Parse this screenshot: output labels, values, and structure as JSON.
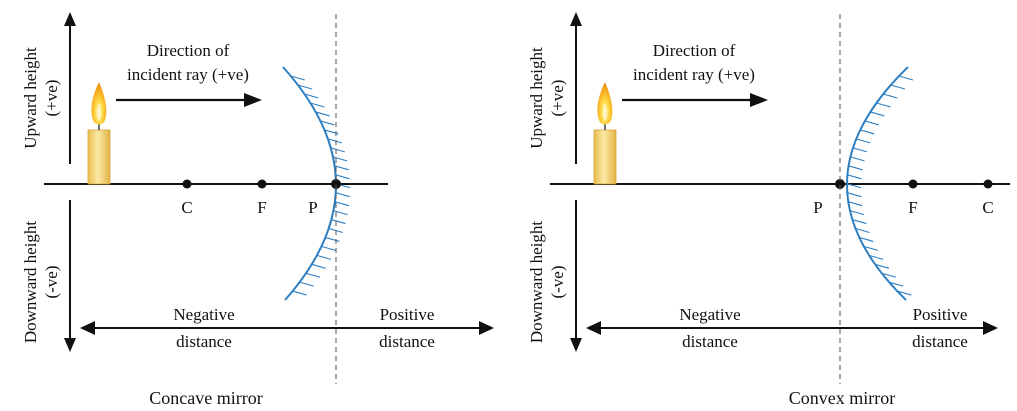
{
  "colors": {
    "mirror": "#2f7fc1",
    "axis": "#111111",
    "candle_body": "#f2d27a",
    "flame_outer": "#f6a21a",
    "flame_inner": "#fde36a"
  },
  "icons": [
    "candle-icon",
    "concave-mirror-icon",
    "convex-mirror-icon",
    "arrow-icon"
  ],
  "panels": [
    {
      "caption": "Concave mirror",
      "upward_label_1": "Upward height",
      "upward_label_2": "(+ve)",
      "downward_label_1": "Downward height",
      "downward_label_2": "(-ve)",
      "direction_line1": "Direction of",
      "direction_line2": "incident ray (+ve)",
      "negative_line1": "Negative",
      "negative_line2": "distance",
      "positive_line1": "Positive",
      "positive_line2": "distance",
      "point_c": "C",
      "point_f": "F",
      "point_p": "P"
    },
    {
      "caption": "Convex mirror",
      "upward_label_1": "Upward height",
      "upward_label_2": "(+ve)",
      "downward_label_1": "Downward height",
      "downward_label_2": "(-ve)",
      "direction_line1": "Direction of",
      "direction_line2": "incident ray (+ve)",
      "negative_line1": "Negative",
      "negative_line2": "distance",
      "positive_line1": "Positive",
      "positive_line2": "distance",
      "point_p": "P",
      "point_f": "F",
      "point_c": "C"
    }
  ]
}
